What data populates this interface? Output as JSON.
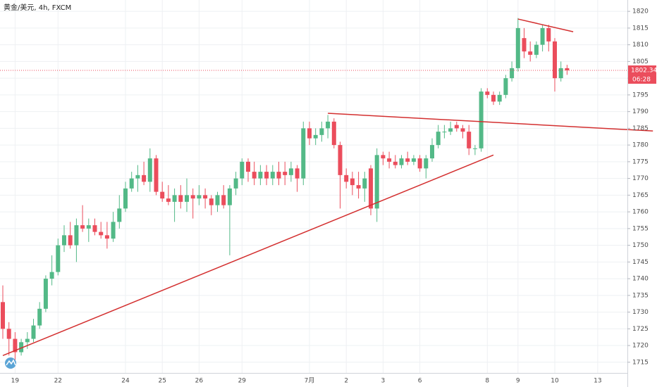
{
  "chart_data": {
    "type": "candlestick",
    "title": "黄金/美元, 4h, FXCM",
    "categories": [
      null,
      null,
      "19",
      null,
      null,
      null,
      null,
      null,
      null,
      "22",
      null,
      null,
      null,
      null,
      null,
      null,
      null,
      null,
      null,
      null,
      "24",
      null,
      null,
      null,
      null,
      null,
      "25",
      null,
      null,
      null,
      null,
      null,
      "26",
      null,
      null,
      null,
      null,
      null,
      null,
      "29",
      null,
      null,
      null,
      null,
      null,
      null,
      null,
      null,
      null,
      null,
      "7月",
      null,
      null,
      null,
      null,
      null,
      "2",
      null,
      null,
      null,
      null,
      null,
      "3",
      null,
      null,
      null,
      null,
      null,
      "6",
      null,
      null,
      null,
      null,
      null,
      null,
      null,
      null,
      null,
      null,
      "8",
      null,
      null,
      null,
      null,
      "9",
      null,
      null,
      null,
      null,
      null,
      "10",
      null,
      null,
      null,
      null,
      null,
      null,
      "13",
      null
    ],
    "open": [
      1733,
      1725,
      1722,
      1718,
      1721,
      1722,
      1726,
      1731,
      1740,
      1742,
      1750,
      1753,
      1750,
      1756,
      1755,
      1756,
      1754,
      1753,
      1752,
      1757,
      1761,
      1767,
      1770,
      1771,
      1769,
      1776,
      1766,
      1764,
      1763,
      1765,
      1763,
      1765,
      1764,
      1765,
      1764,
      1762,
      1765,
      1762,
      1767,
      1770,
      1775,
      1772,
      1770,
      1772,
      1770,
      1772,
      1772,
      1771,
      1773,
      1770,
      1785,
      1782,
      1783,
      1785,
      1787,
      1780,
      1771,
      1770,
      1768,
      1767,
      1773,
      1761,
      1777,
      1776,
      1775,
      1774,
      1776,
      1775,
      1776,
      1773,
      1776,
      1780,
      1784,
      1784,
      1786,
      1785,
      1784,
      1779,
      1779,
      1796,
      1795,
      1793,
      1795,
      1800,
      1803,
      1812,
      1808,
      1807,
      1810,
      1815,
      1811,
      1800,
      1803,
      null,
      null,
      null,
      null,
      null,
      null
    ],
    "high": [
      1738,
      1727,
      1724,
      1722,
      1724,
      1728,
      1733,
      1741,
      1747,
      1752,
      1756,
      1757,
      1758,
      1762,
      1758,
      1758,
      1757,
      1757,
      1760,
      1765,
      1769,
      1772,
      1774,
      1775,
      1779,
      1777,
      1769,
      1768,
      1767,
      1768,
      1770,
      1767,
      1768,
      1767,
      1765,
      1766,
      1768,
      1768,
      1772,
      1776,
      1776,
      1775,
      1774,
      1774,
      1774,
      1775,
      1775,
      1775,
      1774,
      1787,
      1787,
      1785,
      1787,
      1789,
      1788,
      1781,
      1773,
      1772,
      1772,
      1772,
      1774,
      1779,
      1778,
      1778,
      1777,
      1777,
      1778,
      1777,
      1777,
      1777,
      1782,
      1786,
      1786,
      1787,
      1787,
      1786,
      1786,
      1780,
      1797,
      1797,
      1796,
      1796,
      1801,
      1805,
      1818,
      1815,
      1811,
      1811,
      1816,
      1816,
      1812,
      1805,
      1804,
      null,
      null,
      null,
      null,
      null,
      null
    ],
    "low": [
      1722,
      1717,
      1715,
      1717,
      1719,
      1721,
      1725,
      1730,
      1738,
      1741,
      1748,
      1749,
      1745,
      1754,
      1751,
      1753,
      1752,
      1749,
      1751,
      1755,
      1760,
      1766,
      1766,
      1768,
      1766,
      1765,
      1763,
      1762,
      1757,
      1761,
      1760,
      1758,
      1762,
      1761,
      1759,
      1760,
      1761,
      1747,
      1765,
      1768,
      1769,
      1768,
      1768,
      1768,
      1768,
      1768,
      1768,
      1769,
      1766,
      1768,
      1780,
      1780,
      1781,
      1782,
      1779,
      1761,
      1767,
      1765,
      1764,
      1763,
      1759,
      1757,
      1774,
      1773,
      1773,
      1773,
      1774,
      1774,
      1772,
      1770,
      1775,
      1779,
      1782,
      1783,
      1784,
      1782,
      1777,
      1777,
      1778,
      1794,
      1792,
      1792,
      1794,
      1799,
      1802,
      1806,
      1805,
      1806,
      1808,
      1808,
      1796,
      1799,
      1801,
      null,
      null,
      null,
      null,
      null,
      null
    ],
    "close": [
      1725,
      1722,
      1718,
      1721,
      1722,
      1726,
      1731,
      1740,
      1742,
      1750,
      1753,
      1750,
      1756,
      1755,
      1756,
      1754,
      1753,
      1752,
      1757,
      1761,
      1767,
      1770,
      1771,
      1769,
      1776,
      1766,
      1764,
      1763,
      1765,
      1763,
      1765,
      1764,
      1765,
      1764,
      1762,
      1765,
      1762,
      1767,
      1770,
      1775,
      1772,
      1770,
      1772,
      1770,
      1772,
      1770,
      1771,
      1773,
      1770,
      1785,
      1782,
      1783,
      1785,
      1787,
      1780,
      1771,
      1769,
      1768,
      1767,
      1770,
      1761,
      1777,
      1776,
      1775,
      1774,
      1776,
      1775,
      1776,
      1773,
      1776,
      1780,
      1784,
      1784,
      1785,
      1785,
      1784,
      1779,
      1779,
      1796,
      1795,
      1793,
      1795,
      1800,
      1803,
      1815,
      1808,
      1807,
      1810,
      1815,
      1811,
      1800,
      1803,
      1802.34,
      null,
      null,
      null,
      null,
      null,
      null
    ],
    "up_color": "#53b987",
    "down_color": "#eb4d5c",
    "ylim": [
      1711.8,
      1823.4
    ],
    "yticks": [
      1715,
      1720,
      1725,
      1730,
      1735,
      1740,
      1745,
      1750,
      1755,
      1760,
      1765,
      1770,
      1775,
      1780,
      1785,
      1790,
      1795,
      1800,
      1805,
      1810,
      1815,
      1820
    ],
    "grid": true,
    "last_price": 1802.34,
    "countdown": "06:28",
    "trendline_color": "#d32f2f",
    "trendlines": [
      {
        "x": [
          0,
          80
        ],
        "y": [
          1717,
          1777
        ]
      },
      {
        "x": [
          53,
          106
        ],
        "y": [
          1789.5,
          1784.2
        ]
      },
      {
        "x": [
          84,
          93
        ],
        "y": [
          1817.7,
          1813.9
        ]
      }
    ]
  }
}
